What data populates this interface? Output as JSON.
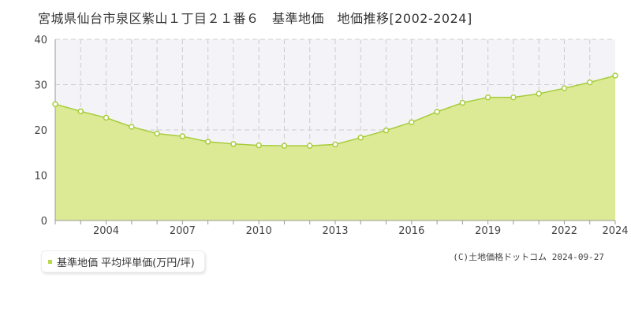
{
  "title": "宮城県仙台市泉区紫山１丁目２１番６　基準地価　地価推移[2002-2024]",
  "legend": {
    "label": "基準地価 平均坪単価(万円/坪)"
  },
  "copyright": "(C)土地価格ドットコム 2024-09-27",
  "colors": {
    "fill": "#dcea96",
    "line": "#a8cc3c",
    "marker_fill": "#ffffff",
    "marker_stroke": "#a8cc3c",
    "band": "#f4f4f8",
    "grid": "#cccccc",
    "legend_marker": "#b8d84a"
  },
  "chart_data": {
    "type": "area",
    "x": [
      2002,
      2003,
      2004,
      2005,
      2006,
      2007,
      2008,
      2009,
      2010,
      2011,
      2012,
      2013,
      2014,
      2015,
      2016,
      2017,
      2018,
      2019,
      2020,
      2021,
      2022,
      2023,
      2024
    ],
    "series": [
      {
        "name": "基準地価 平均坪単価(万円/坪)",
        "values": [
          25.7,
          24.1,
          22.7,
          20.7,
          19.2,
          18.6,
          17.4,
          16.9,
          16.6,
          16.5,
          16.5,
          16.8,
          18.3,
          19.9,
          21.7,
          24.0,
          26.0,
          27.2,
          27.2,
          28.0,
          29.2,
          30.5,
          32.0
        ]
      }
    ],
    "xtick_labels": [
      "2004",
      "2007",
      "2010",
      "2013",
      "2016",
      "2019",
      "2022",
      "2024"
    ],
    "ytick_labels": [
      "0",
      "10",
      "20",
      "30",
      "40"
    ],
    "xlim": [
      2002,
      2024
    ],
    "ylim": [
      0,
      40
    ],
    "grid": true,
    "legend_position": "bottom-left",
    "title": "宮城県仙台市泉区紫山１丁目２１番６　基準地価　地価推移[2002-2024]",
    "xlabel": "",
    "ylabel": ""
  }
}
